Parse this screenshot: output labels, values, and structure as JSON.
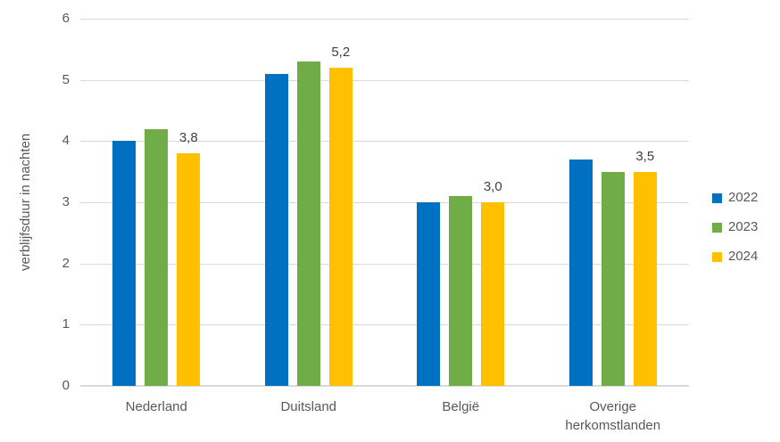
{
  "chart_data": {
    "type": "bar",
    "title": "",
    "ylabel": "verblijfsduur in nachten",
    "xlabel": "",
    "ylim": [
      0,
      6
    ],
    "ytick_step": 1,
    "grid": true,
    "legend_position": "right",
    "categories": [
      "Nederland",
      "Duitsland",
      "België",
      "Overige herkomstlanden"
    ],
    "series": [
      {
        "name": "2022",
        "color": "#0070C0",
        "values": [
          4.0,
          5.1,
          3.0,
          3.7
        ]
      },
      {
        "name": "2023",
        "color": "#70AD47",
        "values": [
          4.2,
          5.3,
          3.1,
          3.5
        ]
      },
      {
        "name": "2024",
        "color": "#FFC000",
        "values": [
          3.8,
          5.2,
          3.0,
          3.5
        ],
        "data_labels": [
          "3,8",
          "5,2",
          "3,0",
          "3,5"
        ]
      }
    ],
    "styles": {
      "gridline_color": "#d9d9d9",
      "axis_text_color": "#595959",
      "data_label_color": "#404040",
      "background": "#ffffff"
    }
  }
}
